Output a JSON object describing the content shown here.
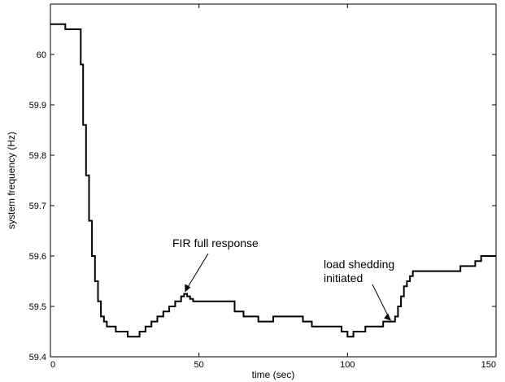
{
  "chart_data": {
    "type": "line",
    "title": "",
    "xlabel": "time (sec)",
    "ylabel": "system frequency (Hz)",
    "xlim": [
      0,
      150
    ],
    "ylim": [
      59.4,
      60.1
    ],
    "xticks": [
      0,
      50,
      100,
      150
    ],
    "yticks": [
      59.4,
      59.5,
      59.6,
      59.7,
      59.8,
      59.9,
      60
    ],
    "xtick_labels": [
      "0",
      "50",
      "100",
      "150"
    ],
    "ytick_labels": [
      "59.4",
      "59.5",
      "59.6",
      "59.7",
      "59.8",
      "59.9",
      "60"
    ],
    "grid": false,
    "series": [
      {
        "x": [
          0,
          5,
          9.5,
          10.2,
          11,
          12,
          13,
          14,
          15,
          16,
          17,
          18,
          19,
          20,
          22,
          24,
          26,
          28,
          30,
          32,
          34,
          36,
          38,
          40,
          42,
          44,
          45,
          46,
          47,
          48,
          50,
          55,
          60,
          62,
          65,
          70,
          75,
          80,
          85,
          88,
          90,
          92,
          95,
          98,
          100,
          102,
          104,
          106,
          108,
          110,
          112,
          114,
          115,
          116,
          117,
          118,
          119,
          120,
          121,
          122,
          125,
          128,
          130,
          133,
          135,
          138,
          140,
          143,
          145,
          148,
          150
        ],
        "y": [
          60.06,
          60.05,
          60.05,
          59.98,
          59.86,
          59.76,
          59.67,
          59.6,
          59.55,
          59.51,
          59.48,
          59.47,
          59.46,
          59.46,
          59.45,
          59.45,
          59.44,
          59.44,
          59.45,
          59.46,
          59.47,
          59.48,
          59.49,
          59.5,
          59.51,
          59.52,
          59.525,
          59.52,
          59.515,
          59.51,
          59.51,
          59.51,
          59.51,
          59.49,
          59.48,
          59.47,
          59.48,
          59.48,
          59.47,
          59.46,
          59.46,
          59.46,
          59.46,
          59.45,
          59.44,
          59.45,
          59.45,
          59.46,
          59.46,
          59.46,
          59.47,
          59.47,
          59.47,
          59.48,
          59.5,
          59.52,
          59.54,
          59.55,
          59.56,
          59.57,
          59.57,
          59.57,
          59.57,
          59.57,
          59.57,
          59.58,
          59.58,
          59.59,
          59.6,
          59.6,
          59.6
        ]
      }
    ],
    "annotations": [
      {
        "text": "FIR full response",
        "x": 45,
        "y": 59.525
      },
      {
        "text": "load shedding\ninitiated",
        "x": 115,
        "y": 59.47
      }
    ]
  }
}
